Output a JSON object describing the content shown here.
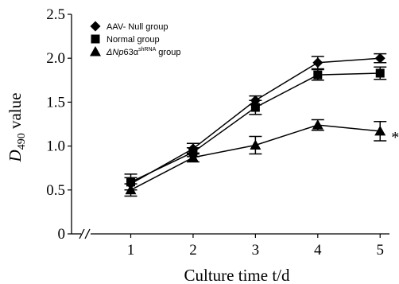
{
  "chart_data": {
    "type": "line",
    "title": "",
    "xlabel": "Culture time t/d",
    "ylabel_main": "D",
    "ylabel_sub": "490",
    "ylabel_rest": " value",
    "x": [
      1,
      2,
      3,
      4,
      5
    ],
    "xlim": [
      0.05,
      5.15
    ],
    "ylim": [
      0,
      2.5
    ],
    "x_ticks": [
      "1",
      "2",
      "3",
      "4",
      "5"
    ],
    "y_ticks": [
      "0",
      "0.5",
      "1.0",
      "1.5",
      "2.0",
      "2.5"
    ],
    "y_tick_values": [
      0,
      0.5,
      1.0,
      1.5,
      2.0,
      2.5
    ],
    "grid": false,
    "legend_position": "top-left",
    "axis_break": "x",
    "series": [
      {
        "name": "AAV- Null group",
        "marker": "diamond",
        "values": [
          0.57,
          0.97,
          1.52,
          1.95,
          2.0
        ],
        "errors": [
          0.07,
          0.06,
          0.05,
          0.07,
          0.05
        ]
      },
      {
        "name": "Normal group",
        "marker": "square",
        "values": [
          0.59,
          0.93,
          1.44,
          1.81,
          1.83
        ],
        "errors": [
          0.09,
          0.05,
          0.08,
          0.06,
          0.07
        ]
      },
      {
        "name_prefix": "ΔNp",
        "name_mid": "63α",
        "name_sup": "shRNA",
        "name_suffix": " group",
        "marker": "triangle",
        "values": [
          0.5,
          0.87,
          1.01,
          1.24,
          1.17
        ],
        "errors": [
          0.07,
          0.05,
          0.1,
          0.06,
          0.11
        ]
      }
    ],
    "annotations": [
      {
        "text": "*",
        "series_index": 2,
        "x": 5
      }
    ]
  }
}
